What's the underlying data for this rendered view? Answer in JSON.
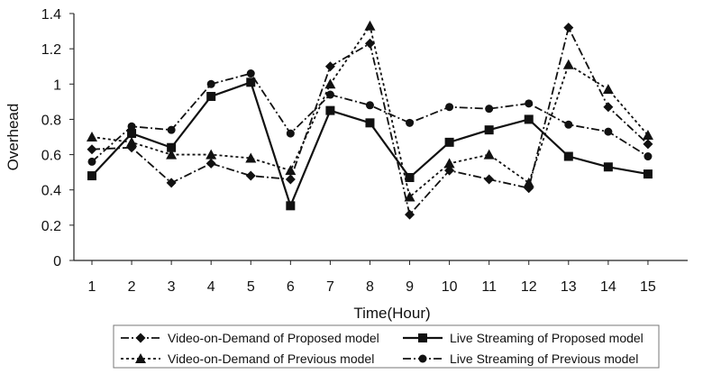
{
  "chart_data": {
    "type": "line",
    "xlabel": "Time(Hour)",
    "ylabel": "Overhead",
    "x": [
      1,
      2,
      3,
      4,
      5,
      6,
      7,
      8,
      9,
      10,
      11,
      12,
      13,
      14,
      15
    ],
    "ylim": [
      0,
      1.4
    ],
    "yticks": [
      "0",
      "0.2",
      "0.4",
      "0.6",
      "0.8",
      "1",
      "1.2",
      "1.4"
    ],
    "xticks": [
      "1",
      "2",
      "3",
      "4",
      "5",
      "6",
      "7",
      "8",
      "9",
      "10",
      "11",
      "12",
      "13",
      "14",
      "15"
    ],
    "grid": false,
    "legend_position": "bottom",
    "series": [
      {
        "name": "Video-on-Demand of Proposed model",
        "marker": "diamond",
        "line_style": "dash-dot",
        "values": [
          0.63,
          0.64,
          0.44,
          0.55,
          0.48,
          0.46,
          1.1,
          1.23,
          0.26,
          0.51,
          0.46,
          0.41,
          1.32,
          0.87,
          0.66
        ]
      },
      {
        "name": "Live Streaming of Proposed model",
        "marker": "square",
        "line_style": "solid",
        "values": [
          0.48,
          0.72,
          0.64,
          0.93,
          1.01,
          0.31,
          0.85,
          0.78,
          0.47,
          0.67,
          0.74,
          0.8,
          0.59,
          0.53,
          0.49
        ]
      },
      {
        "name": "Video-on-Demand of Previous model",
        "marker": "triangle",
        "line_style": "dotted",
        "values": [
          0.7,
          0.67,
          0.6,
          0.6,
          0.58,
          0.51,
          1.0,
          1.33,
          0.36,
          0.55,
          0.6,
          0.44,
          1.11,
          0.97,
          0.71
        ]
      },
      {
        "name": "Live Streaming of Previous model",
        "marker": "circle",
        "line_style": "dash-dot",
        "values": [
          0.56,
          0.76,
          0.74,
          1.0,
          1.06,
          0.72,
          0.94,
          0.88,
          0.78,
          0.87,
          0.86,
          0.89,
          0.77,
          0.73,
          0.59
        ]
      }
    ]
  }
}
